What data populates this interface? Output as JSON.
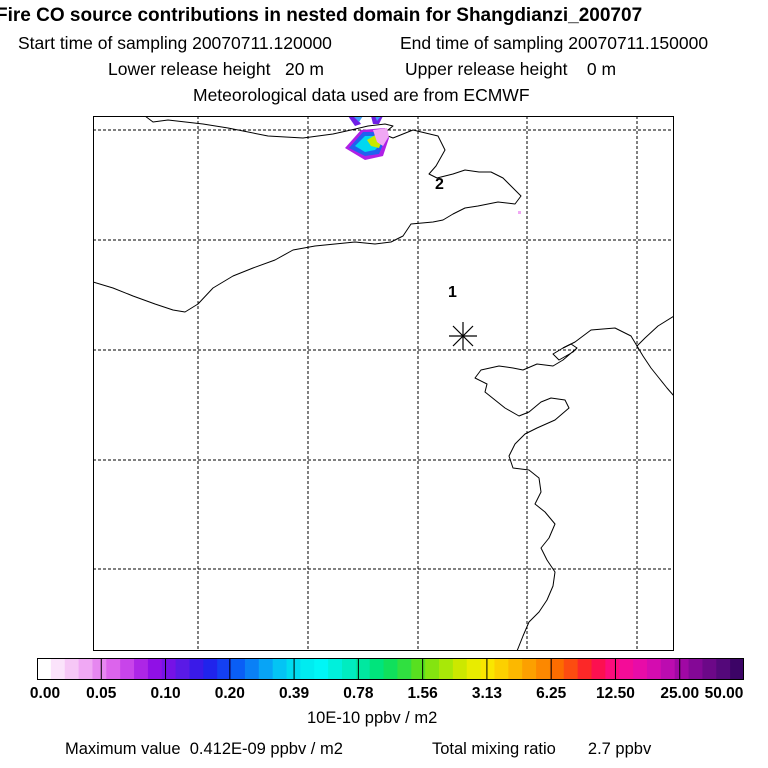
{
  "header": {
    "title": "Fire CO source contributions in nested domain for Shangdianzi_200707",
    "start_label": "Start time of sampling 20070711.120000",
    "end_label": "End time of sampling 20070711.150000",
    "lower_release": "Lower release height   20 m",
    "upper_release": "Upper release height    0 m",
    "met_data": "Meteorological data used are from ECMWF"
  },
  "map": {
    "markers": [
      {
        "label": "1",
        "name": "marker-1"
      },
      {
        "label": "2",
        "name": "marker-2"
      }
    ],
    "station_symbol": "asterisk-icon"
  },
  "colorbar": {
    "ticks": [
      "0.00",
      "0.05",
      "0.10",
      "0.20",
      "0.39",
      "0.78",
      "1.56",
      "3.13",
      "6.25",
      "12.50",
      "25.00",
      "50.00"
    ],
    "colors": [
      "#ffffff",
      "#fbe3fb",
      "#f6c7f6",
      "#f0a8f4",
      "#e687f0",
      "#dc64ec",
      "#c844ea",
      "#ad26e6",
      "#9010e6",
      "#7612e6",
      "#5a1ae6",
      "#3a1ae8",
      "#2024ec",
      "#1440f2",
      "#0a5ef6",
      "#0a80f6",
      "#08a4f6",
      "#04c4f4",
      "#00dcf0",
      "#00ecf0",
      "#00f6f6",
      "#00f0dc",
      "#00ecc0",
      "#00e8a0",
      "#00e47c",
      "#10e05c",
      "#30e040",
      "#58e020",
      "#84e410",
      "#a8e808",
      "#cce800",
      "#e8ec00",
      "#fae600",
      "#fcd000",
      "#fcb800",
      "#fca000",
      "#fc8800",
      "#fc6c00",
      "#fc4c10",
      "#fc2828",
      "#fc1050",
      "#fc0c7c",
      "#f40c98",
      "#e80ca8",
      "#d40cb0",
      "#bc0cb0",
      "#a008a4",
      "#840896",
      "#6c0888",
      "#54087a",
      "#3c0466"
    ],
    "units": "10E-10 ppbv / m2"
  },
  "footer": {
    "max_value": "Maximum value  0.412E-09 ppbv / m2",
    "total_mixing": "Total mixing ratio       2.7 ppbv"
  }
}
